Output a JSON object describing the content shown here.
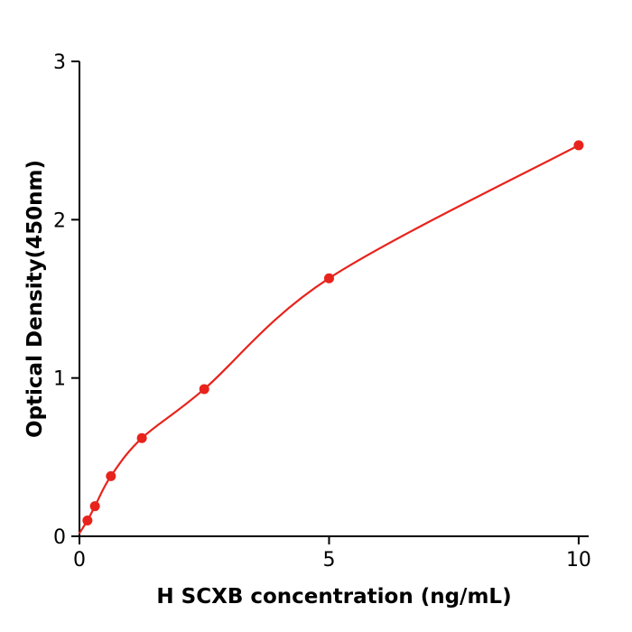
{
  "accent_color": "#e8231c",
  "chart_data": {
    "type": "scatter",
    "title": "",
    "xlabel": "H  SCXB concentration (ng/mL)",
    "ylabel": "Optical Density(450nm)",
    "x": [
      0.16,
      0.31,
      0.63,
      1.25,
      2.5,
      5,
      10
    ],
    "y": [
      0.1,
      0.19,
      0.38,
      0.62,
      0.93,
      1.63,
      2.47
    ],
    "curve_start": [
      0,
      0.02
    ],
    "xlim": [
      0,
      10.2
    ],
    "ylim": [
      0,
      3
    ],
    "xticks": [
      0,
      5,
      10
    ],
    "yticks": [
      0,
      1,
      2,
      3
    ],
    "grid": false,
    "legend": "none",
    "marker_color": "#e8231c",
    "line_color": "#e8231c",
    "axis_color": "#000000"
  }
}
